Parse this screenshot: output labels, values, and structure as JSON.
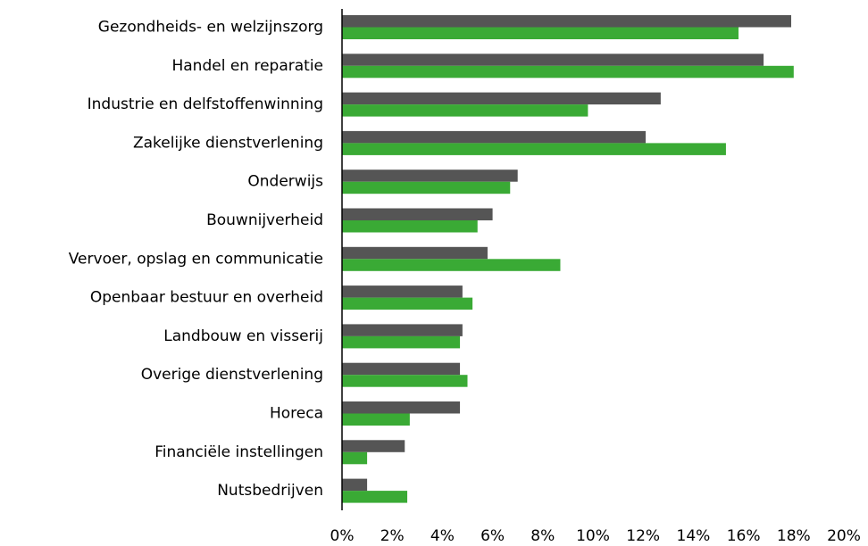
{
  "chart_data": {
    "type": "hbar",
    "categories": [
      "Gezondheids- en welzijnszorg",
      "Handel en reparatie",
      "Industrie en delfstoffenwinning",
      "Zakelijke dienstverlening",
      "Onderwijs",
      "Bouwnijverheid",
      "Vervoer, opslag en communicatie",
      "Openbaar bestuur en overheid",
      "Landbouw en visserij",
      "Overige dienstverlening",
      "Horeca",
      "Financiële instellingen",
      "Nutsbedrijven"
    ],
    "series": [
      {
        "color": "#555555",
        "values": [
          17.9,
          16.8,
          12.7,
          12.1,
          7.0,
          6.0,
          5.8,
          4.8,
          4.8,
          4.7,
          4.7,
          2.5,
          1.0
        ]
      },
      {
        "color": "#3aaa35",
        "values": [
          15.8,
          18.0,
          9.8,
          15.3,
          6.7,
          5.4,
          8.7,
          5.2,
          4.7,
          5.0,
          2.7,
          1.0,
          2.6
        ]
      }
    ],
    "xlim": [
      0,
      20
    ],
    "xticks": [
      {
        "value": 0,
        "label": "0%"
      },
      {
        "value": 2,
        "label": "2%"
      },
      {
        "value": 4,
        "label": "4%"
      },
      {
        "value": 6,
        "label": "6%"
      },
      {
        "value": 8,
        "label": "8%"
      },
      {
        "value": 10,
        "label": "10%"
      },
      {
        "value": 12,
        "label": "12%"
      },
      {
        "value": 14,
        "label": "14%"
      },
      {
        "value": 16,
        "label": "16%"
      },
      {
        "value": 18,
        "label": "18%"
      },
      {
        "value": 20,
        "label": "20%"
      }
    ]
  }
}
